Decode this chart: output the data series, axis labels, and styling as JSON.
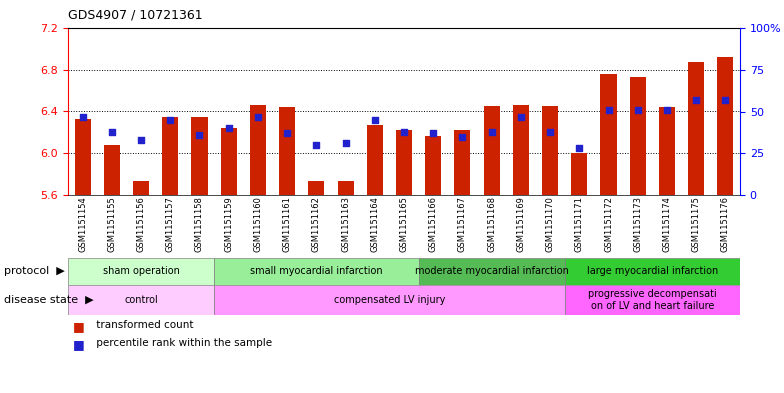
{
  "title": "GDS4907 / 10721361",
  "samples": [
    "GSM1151154",
    "GSM1151155",
    "GSM1151156",
    "GSM1151157",
    "GSM1151158",
    "GSM1151159",
    "GSM1151160",
    "GSM1151161",
    "GSM1151162",
    "GSM1151163",
    "GSM1151164",
    "GSM1151165",
    "GSM1151166",
    "GSM1151167",
    "GSM1151168",
    "GSM1151169",
    "GSM1151170",
    "GSM1151171",
    "GSM1151172",
    "GSM1151173",
    "GSM1151174",
    "GSM1151175",
    "GSM1151176"
  ],
  "transformed_count": [
    6.33,
    6.08,
    5.73,
    6.35,
    6.35,
    6.24,
    6.46,
    6.44,
    5.73,
    5.73,
    6.27,
    6.22,
    6.17,
    6.22,
    6.45,
    6.46,
    6.45,
    6.0,
    6.76,
    6.73,
    6.44,
    6.87,
    6.92
  ],
  "percentile_rank": [
    47,
    38,
    33,
    45,
    36,
    40,
    47,
    37,
    30,
    31,
    45,
    38,
    37,
    35,
    38,
    47,
    38,
    28,
    51,
    51,
    51,
    57,
    57
  ],
  "ylim_left": [
    5.6,
    7.2
  ],
  "ylim_right": [
    0,
    100
  ],
  "yticks_left": [
    5.6,
    6.0,
    6.4,
    6.8,
    7.2
  ],
  "yticks_right": [
    0,
    25,
    50,
    75,
    100
  ],
  "ytick_labels_right": [
    "0",
    "25",
    "50",
    "75",
    "100%"
  ],
  "bar_color": "#cc2200",
  "dot_color": "#2222cc",
  "bar_bottom": 5.6,
  "protocol_groups": [
    {
      "label": "sham operation",
      "start": 0,
      "end": 4,
      "color": "#ccffcc"
    },
    {
      "label": "small myocardial infarction",
      "start": 5,
      "end": 11,
      "color": "#99ee99"
    },
    {
      "label": "moderate myocardial infarction",
      "start": 12,
      "end": 16,
      "color": "#55bb55"
    },
    {
      "label": "large myocardial infarction",
      "start": 17,
      "end": 22,
      "color": "#33cc33"
    }
  ],
  "disease_groups": [
    {
      "label": "control",
      "start": 0,
      "end": 4,
      "color": "#ffccff"
    },
    {
      "label": "compensated LV injury",
      "start": 5,
      "end": 16,
      "color": "#ff99ff"
    },
    {
      "label": "progressive decompensati\non of LV and heart failure",
      "start": 17,
      "end": 22,
      "color": "#ff66ff"
    }
  ],
  "bar_width": 0.55,
  "dot_size": 18,
  "tick_label_fontsize": 6.0,
  "title_fontsize": 9,
  "protocol_fontsize": 7.0,
  "disease_fontsize": 7.0,
  "legend_fontsize": 7.5,
  "left_tick_color": "red",
  "right_tick_color": "blue"
}
